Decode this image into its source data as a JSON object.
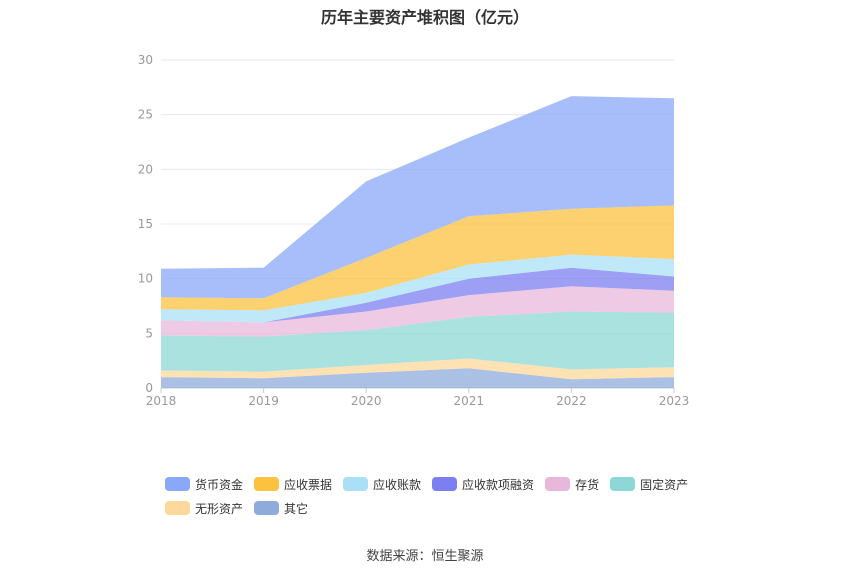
{
  "chart_data": {
    "type": "area",
    "stacked": true,
    "title": "历年主要资产堆积图（亿元）",
    "categories": [
      "2018",
      "2019",
      "2020",
      "2021",
      "2022",
      "2023"
    ],
    "ylim": [
      0,
      30
    ],
    "yticks": [
      0,
      5,
      10,
      15,
      20,
      25,
      30
    ],
    "legend_position": "bottom",
    "series": [
      {
        "name": "其它",
        "color": "#8eabdc",
        "values": [
          1.0,
          0.9,
          1.4,
          1.8,
          0.8,
          1.0
        ]
      },
      {
        "name": "无形资产",
        "color": "#fdd89a",
        "values": [
          0.6,
          0.6,
          0.7,
          0.9,
          0.9,
          0.9
        ]
      },
      {
        "name": "固定资产",
        "color": "#8dd8d6",
        "values": [
          3.2,
          3.2,
          3.2,
          3.8,
          5.3,
          5.0
        ]
      },
      {
        "name": "存货",
        "color": "#e8b8db",
        "values": [
          1.4,
          1.3,
          1.7,
          2.0,
          2.3,
          2.0
        ]
      },
      {
        "name": "应收款项融资",
        "color": "#7b7ff0",
        "values": [
          0.0,
          0.0,
          0.8,
          1.5,
          1.7,
          1.3
        ]
      },
      {
        "name": "应收账款",
        "color": "#a9e0f7",
        "values": [
          1.0,
          1.1,
          0.9,
          1.3,
          1.2,
          1.6
        ]
      },
      {
        "name": "应收票据",
        "color": "#fcc23f",
        "values": [
          1.1,
          1.1,
          3.2,
          4.4,
          4.2,
          4.9
        ]
      },
      {
        "name": "货币资金",
        "color": "#89a8f8",
        "values": [
          2.6,
          2.8,
          7.0,
          7.2,
          10.3,
          9.8
        ]
      }
    ],
    "source": "数据来源：恒生聚源"
  },
  "legend_order": [
    "货币资金",
    "应收票据",
    "应收账款",
    "应收款项融资",
    "存货",
    "固定资产",
    "无形资产",
    "其它"
  ]
}
